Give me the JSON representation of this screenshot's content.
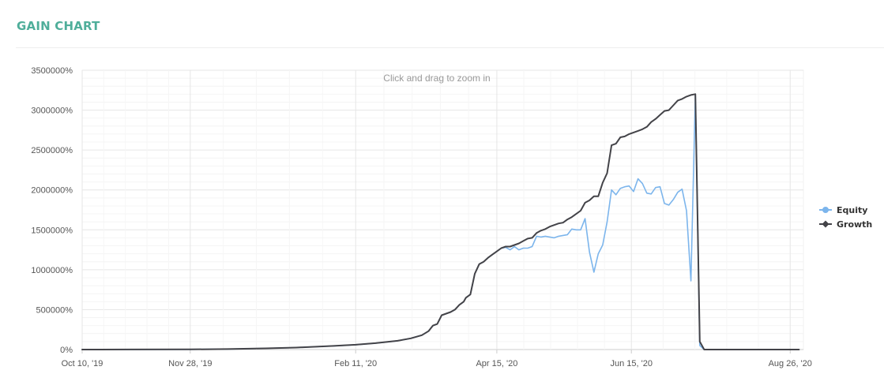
{
  "page": {
    "title": "GAIN CHART"
  },
  "chart_data": {
    "type": "line",
    "title": "",
    "xlabel": "",
    "ylabel": "",
    "zoom_hint": "Click and drag to zoom in",
    "x_range": [
      "2019-10-10",
      "2020-09-01"
    ],
    "ylim": [
      0,
      3500000
    ],
    "y_ticks": [
      0,
      500000,
      1000000,
      1500000,
      2000000,
      2500000,
      3000000,
      3500000
    ],
    "y_tick_labels": [
      "0%",
      "500000%",
      "1000000%",
      "1500000%",
      "2000000%",
      "2500000%",
      "3000000%",
      "3500000%"
    ],
    "x_ticks": [
      "2019-10-10",
      "2019-11-28",
      "2020-02-11",
      "2020-04-15",
      "2020-06-15",
      "2020-08-26"
    ],
    "x_tick_labels": [
      "Oct 10, '19",
      "Nov 28, '19",
      "Feb 11, '20",
      "Apr 15, '20",
      "Jun 15, '20",
      "Aug 26, '20"
    ],
    "grid": true,
    "legend_position": "right",
    "series": [
      {
        "name": "Equity",
        "color": "#7cb5ec",
        "marker": "circle",
        "points": [
          [
            "2019-10-10",
            0
          ],
          [
            "2019-11-01",
            500
          ],
          [
            "2019-11-28",
            2000
          ],
          [
            "2019-12-15",
            6000
          ],
          [
            "2020-01-01",
            15000
          ],
          [
            "2020-01-15",
            25000
          ],
          [
            "2020-02-01",
            45000
          ],
          [
            "2020-02-11",
            60000
          ],
          [
            "2020-02-20",
            80000
          ],
          [
            "2020-03-01",
            110000
          ],
          [
            "2020-03-07",
            140000
          ],
          [
            "2020-03-12",
            180000
          ],
          [
            "2020-03-15",
            230000
          ],
          [
            "2020-03-17",
            300000
          ],
          [
            "2020-03-19",
            320000
          ],
          [
            "2020-03-21",
            430000
          ],
          [
            "2020-03-25",
            470000
          ],
          [
            "2020-03-27",
            500000
          ],
          [
            "2020-03-29",
            560000
          ],
          [
            "2020-03-31",
            600000
          ],
          [
            "2020-04-01",
            650000
          ],
          [
            "2020-04-03",
            690000
          ],
          [
            "2020-04-05",
            950000
          ],
          [
            "2020-04-07",
            1070000
          ],
          [
            "2020-04-09",
            1100000
          ],
          [
            "2020-04-11",
            1150000
          ],
          [
            "2020-04-13",
            1190000
          ],
          [
            "2020-04-15",
            1230000
          ],
          [
            "2020-04-17",
            1270000
          ],
          [
            "2020-04-19",
            1280000
          ],
          [
            "2020-04-21",
            1250000
          ],
          [
            "2020-04-23",
            1290000
          ],
          [
            "2020-04-25",
            1250000
          ],
          [
            "2020-04-27",
            1270000
          ],
          [
            "2020-04-29",
            1270000
          ],
          [
            "2020-05-01",
            1290000
          ],
          [
            "2020-05-03",
            1420000
          ],
          [
            "2020-05-05",
            1410000
          ],
          [
            "2020-05-07",
            1420000
          ],
          [
            "2020-05-09",
            1410000
          ],
          [
            "2020-05-11",
            1400000
          ],
          [
            "2020-05-13",
            1420000
          ],
          [
            "2020-05-15",
            1430000
          ],
          [
            "2020-05-17",
            1440000
          ],
          [
            "2020-05-19",
            1510000
          ],
          [
            "2020-05-21",
            1500000
          ],
          [
            "2020-05-23",
            1500000
          ],
          [
            "2020-05-25",
            1640000
          ],
          [
            "2020-05-27",
            1220000
          ],
          [
            "2020-05-29",
            970000
          ],
          [
            "2020-05-31",
            1200000
          ],
          [
            "2020-06-02",
            1310000
          ],
          [
            "2020-06-04",
            1600000
          ],
          [
            "2020-06-06",
            2000000
          ],
          [
            "2020-06-08",
            1940000
          ],
          [
            "2020-06-10",
            2020000
          ],
          [
            "2020-06-12",
            2040000
          ],
          [
            "2020-06-14",
            2050000
          ],
          [
            "2020-06-16",
            1980000
          ],
          [
            "2020-06-18",
            2140000
          ],
          [
            "2020-06-20",
            2080000
          ],
          [
            "2020-06-22",
            1960000
          ],
          [
            "2020-06-24",
            1950000
          ],
          [
            "2020-06-26",
            2030000
          ],
          [
            "2020-06-28",
            2040000
          ],
          [
            "2020-06-30",
            1830000
          ],
          [
            "2020-07-02",
            1810000
          ],
          [
            "2020-07-04",
            1880000
          ],
          [
            "2020-07-06",
            1970000
          ],
          [
            "2020-07-08",
            2010000
          ],
          [
            "2020-07-10",
            1740000
          ],
          [
            "2020-07-12",
            860000
          ],
          [
            "2020-07-14",
            3190000
          ],
          [
            "2020-07-16",
            50000
          ],
          [
            "2020-07-18",
            0
          ],
          [
            "2020-08-01",
            0
          ],
          [
            "2020-08-20",
            0
          ],
          [
            "2020-08-26",
            0
          ],
          [
            "2020-08-30",
            0
          ]
        ]
      },
      {
        "name": "Growth",
        "color": "#434348",
        "marker": "diamond",
        "points": [
          [
            "2019-10-10",
            0
          ],
          [
            "2019-11-01",
            500
          ],
          [
            "2019-11-28",
            2000
          ],
          [
            "2019-12-15",
            6000
          ],
          [
            "2020-01-01",
            15000
          ],
          [
            "2020-01-15",
            25000
          ],
          [
            "2020-02-01",
            45000
          ],
          [
            "2020-02-11",
            60000
          ],
          [
            "2020-02-20",
            80000
          ],
          [
            "2020-03-01",
            110000
          ],
          [
            "2020-03-07",
            140000
          ],
          [
            "2020-03-12",
            180000
          ],
          [
            "2020-03-15",
            230000
          ],
          [
            "2020-03-17",
            300000
          ],
          [
            "2020-03-19",
            320000
          ],
          [
            "2020-03-21",
            430000
          ],
          [
            "2020-03-25",
            470000
          ],
          [
            "2020-03-27",
            500000
          ],
          [
            "2020-03-29",
            560000
          ],
          [
            "2020-03-31",
            600000
          ],
          [
            "2020-04-01",
            650000
          ],
          [
            "2020-04-03",
            690000
          ],
          [
            "2020-04-05",
            950000
          ],
          [
            "2020-04-07",
            1070000
          ],
          [
            "2020-04-09",
            1100000
          ],
          [
            "2020-04-11",
            1150000
          ],
          [
            "2020-04-13",
            1190000
          ],
          [
            "2020-04-15",
            1230000
          ],
          [
            "2020-04-17",
            1270000
          ],
          [
            "2020-04-19",
            1290000
          ],
          [
            "2020-04-21",
            1290000
          ],
          [
            "2020-04-23",
            1310000
          ],
          [
            "2020-04-25",
            1330000
          ],
          [
            "2020-04-27",
            1360000
          ],
          [
            "2020-04-29",
            1390000
          ],
          [
            "2020-05-01",
            1400000
          ],
          [
            "2020-05-03",
            1460000
          ],
          [
            "2020-05-05",
            1490000
          ],
          [
            "2020-05-07",
            1510000
          ],
          [
            "2020-05-09",
            1540000
          ],
          [
            "2020-05-11",
            1560000
          ],
          [
            "2020-05-13",
            1580000
          ],
          [
            "2020-05-15",
            1590000
          ],
          [
            "2020-05-17",
            1630000
          ],
          [
            "2020-05-19",
            1660000
          ],
          [
            "2020-05-21",
            1700000
          ],
          [
            "2020-05-23",
            1740000
          ],
          [
            "2020-05-25",
            1840000
          ],
          [
            "2020-05-27",
            1870000
          ],
          [
            "2020-05-29",
            1920000
          ],
          [
            "2020-05-31",
            1920000
          ],
          [
            "2020-06-02",
            2090000
          ],
          [
            "2020-06-04",
            2210000
          ],
          [
            "2020-06-06",
            2560000
          ],
          [
            "2020-06-08",
            2580000
          ],
          [
            "2020-06-10",
            2660000
          ],
          [
            "2020-06-12",
            2670000
          ],
          [
            "2020-06-14",
            2700000
          ],
          [
            "2020-06-16",
            2720000
          ],
          [
            "2020-06-18",
            2740000
          ],
          [
            "2020-06-20",
            2760000
          ],
          [
            "2020-06-22",
            2790000
          ],
          [
            "2020-06-24",
            2850000
          ],
          [
            "2020-06-26",
            2890000
          ],
          [
            "2020-06-28",
            2940000
          ],
          [
            "2020-06-30",
            2990000
          ],
          [
            "2020-07-02",
            3000000
          ],
          [
            "2020-07-04",
            3060000
          ],
          [
            "2020-07-06",
            3120000
          ],
          [
            "2020-07-08",
            3140000
          ],
          [
            "2020-07-10",
            3170000
          ],
          [
            "2020-07-12",
            3190000
          ],
          [
            "2020-07-14",
            3200000
          ],
          [
            "2020-07-16",
            100000
          ],
          [
            "2020-07-18",
            0
          ],
          [
            "2020-08-01",
            0
          ],
          [
            "2020-08-20",
            0
          ],
          [
            "2020-08-26",
            0
          ],
          [
            "2020-08-30",
            0
          ]
        ]
      }
    ]
  }
}
